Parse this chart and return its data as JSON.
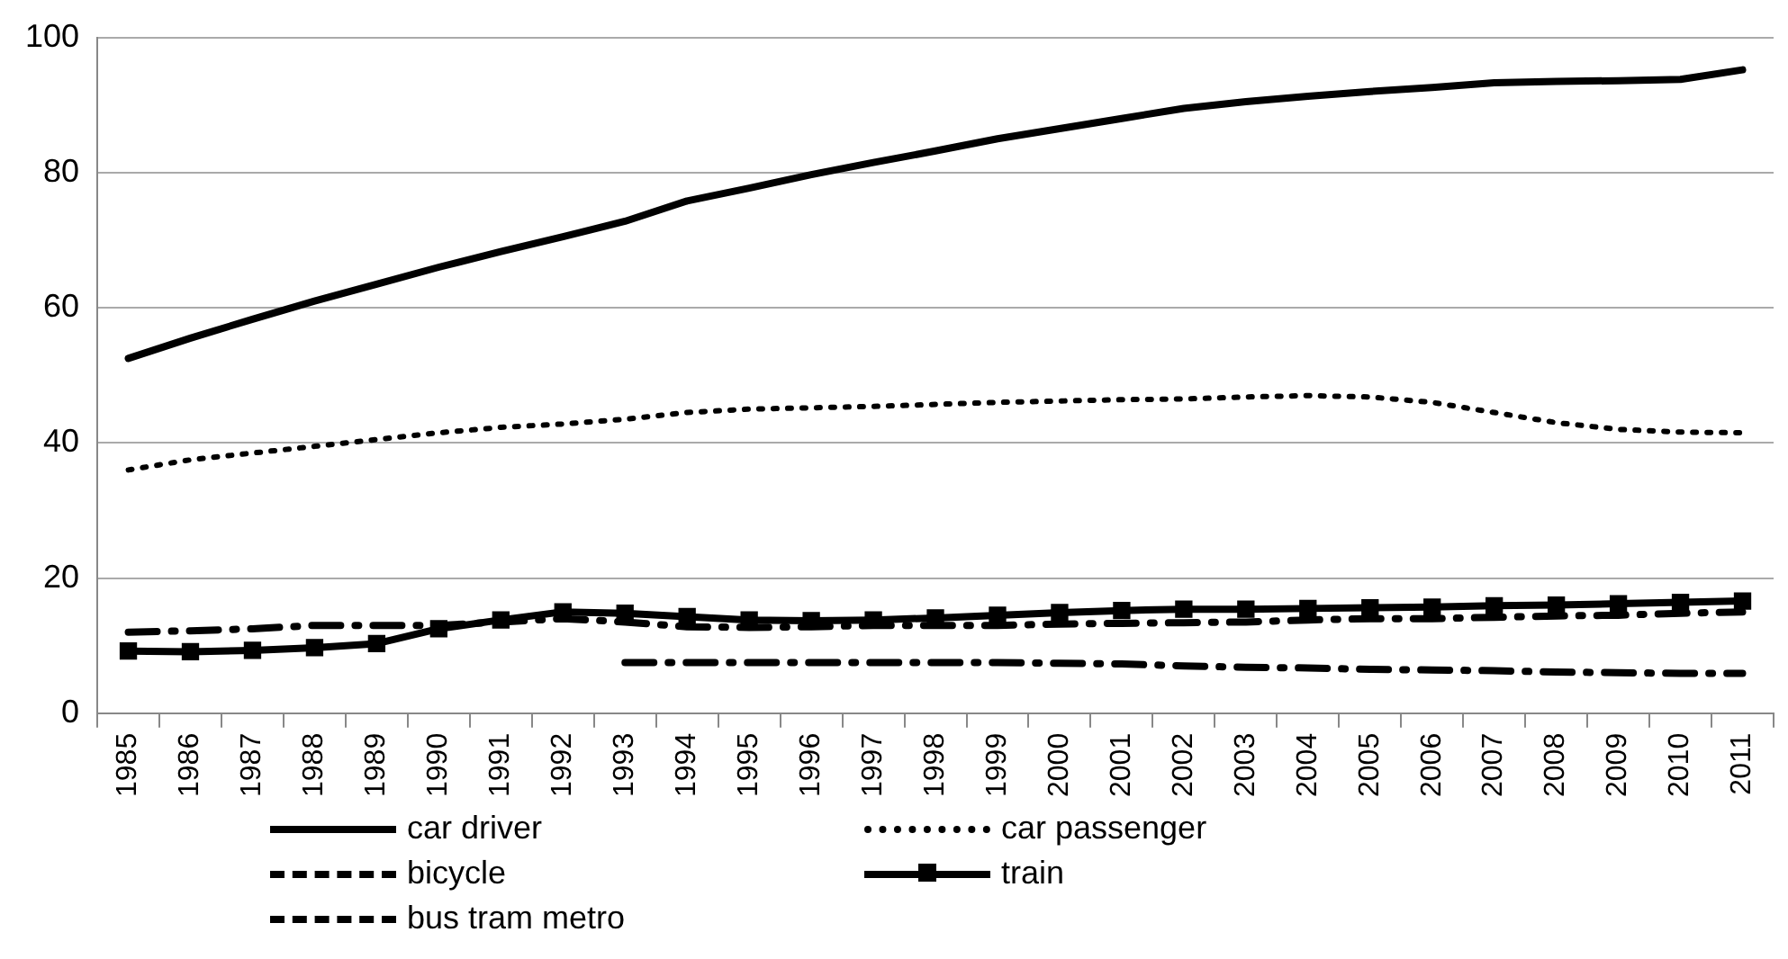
{
  "chart_data": {
    "type": "line",
    "categories": [
      "1985",
      "1986",
      "1987",
      "1988",
      "1989",
      "1990",
      "1991",
      "1992",
      "1993",
      "1994",
      "1995",
      "1996",
      "1997",
      "1998",
      "1999",
      "2000",
      "2001",
      "2002",
      "2003",
      "2004",
      "2005",
      "2006",
      "2007",
      "2008",
      "2009",
      "2010",
      "2011"
    ],
    "ylim": [
      0,
      100
    ],
    "yticks": [
      0,
      20,
      40,
      60,
      80,
      100
    ],
    "grid": "y",
    "legend": "bottom",
    "series": [
      {
        "name": "car driver",
        "color": "#000000",
        "line_style": "solid",
        "marker": "none",
        "values": [
          52.5,
          55.5,
          58.3,
          61,
          63.5,
          66,
          68.3,
          70.5,
          72.8,
          75.8,
          77.7,
          79.7,
          81.5,
          83.2,
          85,
          86.5,
          88,
          89.5,
          90.5,
          91.3,
          92,
          92.6,
          93.3,
          93.5,
          93.6,
          93.8,
          95.2
        ]
      },
      {
        "name": "car passenger",
        "color": "#000000",
        "line_style": "dotted",
        "marker": "none",
        "values": [
          36,
          37.5,
          38.5,
          39.5,
          40.5,
          41.5,
          42.3,
          42.8,
          43.5,
          44.5,
          45,
          45.2,
          45.4,
          45.7,
          46,
          46.2,
          46.4,
          46.5,
          46.8,
          47,
          46.8,
          46,
          44.5,
          43,
          42,
          41.6,
          41.5
        ]
      },
      {
        "name": "bicycle",
        "color": "#000000",
        "line_style": "dashed",
        "marker": "none",
        "values": [
          12,
          12.2,
          12.5,
          13,
          13,
          13,
          13.5,
          14,
          13.5,
          12.8,
          12.7,
          12.8,
          13,
          13,
          13,
          13.2,
          13.3,
          13.4,
          13.5,
          13.8,
          14,
          14,
          14.2,
          14.4,
          14.5,
          14.8,
          15
        ]
      },
      {
        "name": "train",
        "color": "#000000",
        "line_style": "solid",
        "marker": "square",
        "values": [
          9.2,
          9.1,
          9.3,
          9.7,
          10.3,
          12.5,
          13.8,
          15,
          14.8,
          14.3,
          13.8,
          13.7,
          13.8,
          14.1,
          14.5,
          14.9,
          15.2,
          15.4,
          15.4,
          15.5,
          15.6,
          15.7,
          15.9,
          16,
          16.2,
          16.4,
          16.6
        ]
      },
      {
        "name": "bus tram metro",
        "color": "#000000",
        "line_style": "dashed",
        "marker": "none",
        "values": [
          null,
          null,
          null,
          null,
          null,
          null,
          null,
          null,
          7.5,
          7.5,
          7.5,
          7.5,
          7.5,
          7.5,
          7.5,
          7.4,
          7.3,
          7,
          6.8,
          6.7,
          6.5,
          6.4,
          6.3,
          6.1,
          6,
          5.9,
          5.9
        ]
      }
    ]
  }
}
